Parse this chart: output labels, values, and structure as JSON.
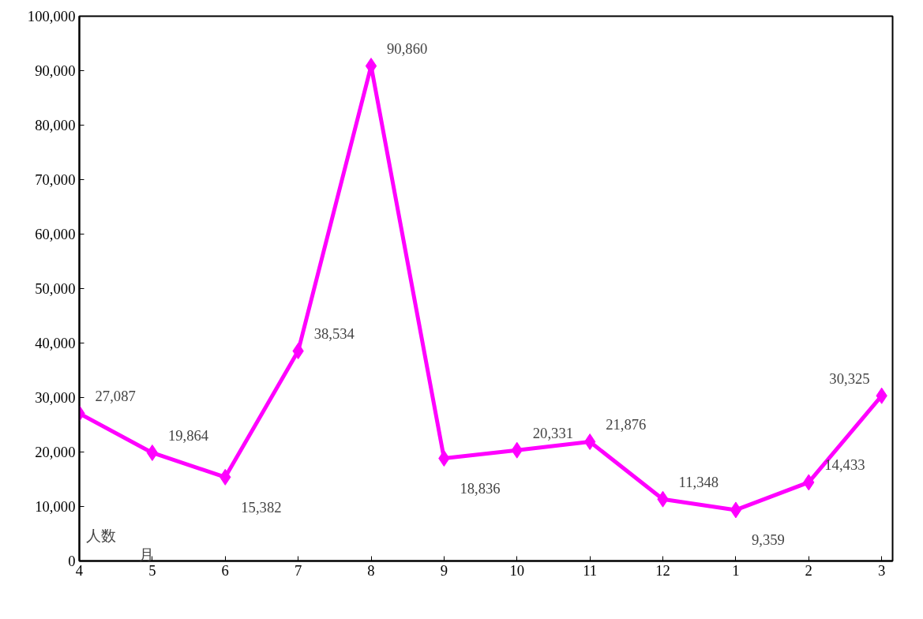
{
  "chart_data": {
    "type": "line",
    "ylabel": "人数",
    "xlabel": "月",
    "categories": [
      "4",
      "5",
      "6",
      "7",
      "8",
      "9",
      "10",
      "11",
      "12",
      "1",
      "2",
      "3"
    ],
    "series": [
      {
        "color": "#ff00ff",
        "values": [
          27087,
          19864,
          15382,
          38534,
          90860,
          18836,
          20331,
          21876,
          11348,
          9359,
          14433,
          30325
        ],
        "value_labels": [
          "27,087",
          "19,864",
          "15,382",
          "38,534",
          "90,860",
          "18,836",
          "20,331",
          "21,876",
          "11,348",
          "9,359",
          "14,433",
          "30,325"
        ]
      }
    ],
    "ylim": [
      0,
      100000
    ],
    "yticks": [
      0,
      {
        "value": 10000,
        "label": "10,000"
      },
      {
        "value": 20000,
        "label": "20,000"
      },
      {
        "value": 30000,
        "label": "30,000"
      },
      {
        "value": 40000,
        "label": "40,000"
      },
      {
        "value": 50000,
        "label": "50,000"
      },
      {
        "value": 60000,
        "label": "60,000"
      },
      {
        "value": 70000,
        "label": "70,000"
      },
      {
        "value": 80000,
        "label": "80,000"
      },
      {
        "value": 90000,
        "label": "90,000"
      },
      {
        "value": 100000,
        "label": "100,000"
      }
    ],
    "grid": false,
    "marker": "diamond",
    "line_style": "solid"
  }
}
